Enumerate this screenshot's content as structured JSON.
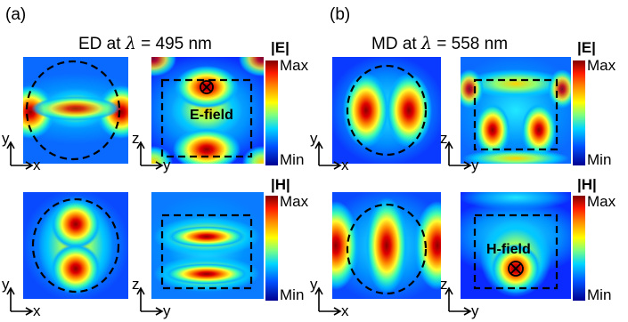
{
  "figure": {
    "panel_a": {
      "letter": "(a)",
      "title_prefix": "ED at ",
      "lambda_symbol": "λ",
      "title_suffix": " = 495 nm",
      "e_field_label": "E-field"
    },
    "panel_b": {
      "letter": "(b)",
      "title_prefix": "MD at ",
      "lambda_symbol": "λ",
      "title_suffix": " = 558 nm",
      "h_field_label": "H-field"
    },
    "colorbars": {
      "e_unit": "|E|",
      "h_unit": "|H|",
      "max_label": "Max",
      "min_label": "Min"
    },
    "axes": {
      "xy_vertical": "y",
      "xy_horizontal": "x",
      "zy_vertical": "z",
      "zy_horizontal": "y"
    },
    "colors": {
      "background_field": "#0a1aff",
      "hot": "#c80000",
      "scatterer_outline": "#000000"
    }
  }
}
